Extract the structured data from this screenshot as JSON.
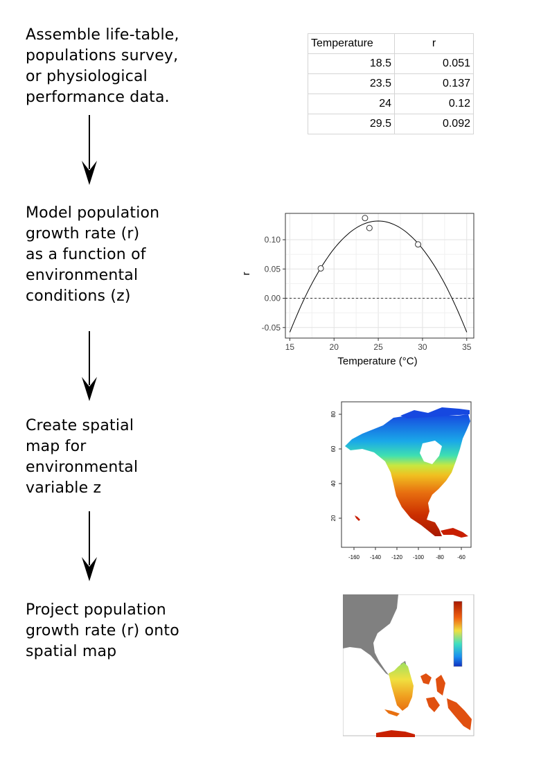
{
  "steps": [
    {
      "lines": [
        "Assemble life-table,",
        "populations survey,",
        "or physiological",
        "performance data."
      ]
    },
    {
      "lines": [
        "Model population",
        "growth rate (r)",
        "as a function of",
        "environmental",
        "conditions (z)"
      ]
    },
    {
      "lines": [
        "Create spatial",
        "map for",
        "environmental",
        "variable z"
      ]
    },
    {
      "lines": [
        "Project population",
        "growth rate (r) onto",
        "spatial map"
      ]
    }
  ],
  "table": {
    "headers": [
      "Temperature",
      "r"
    ],
    "rows": [
      [
        "18.5",
        "0.051"
      ],
      [
        "23.5",
        "0.137"
      ],
      [
        "24",
        "0.12"
      ],
      [
        "29.5",
        "0.092"
      ]
    ]
  },
  "chart_data": [
    {
      "type": "scatter",
      "points": [
        {
          "x": 18.5,
          "y": 0.051
        },
        {
          "x": 23.5,
          "y": 0.137
        },
        {
          "x": 24,
          "y": 0.12
        },
        {
          "x": 29.5,
          "y": 0.092
        }
      ],
      "fit_curve": {
        "shape": "quadratic",
        "vertex": [
          25,
          0.132
        ],
        "a": -0.0019
      },
      "reference_line": {
        "y": 0,
        "style": "dashed"
      },
      "xlabel": "Temperature (°C)",
      "ylabel": "r",
      "xlim": [
        14.5,
        35.8
      ],
      "ylim": [
        -0.068,
        0.145
      ],
      "xticks": [
        15,
        20,
        25,
        30,
        35
      ],
      "yticks": [
        -0.05,
        0.0,
        0.05,
        0.1
      ],
      "ytick_labels": [
        "-0.05",
        "0.00",
        "0.05",
        "0.10"
      ],
      "grid": true
    }
  ],
  "map1": {
    "xticks": [
      "-160",
      "-140",
      "-120",
      "-100",
      "-80",
      "-60"
    ],
    "yticks": [
      "80",
      "60",
      "40",
      "20"
    ]
  },
  "colors": {
    "gray_land": "#808080",
    "cool": "#1a5fe0",
    "warm": "#c81e00",
    "arrow": "#000000"
  }
}
